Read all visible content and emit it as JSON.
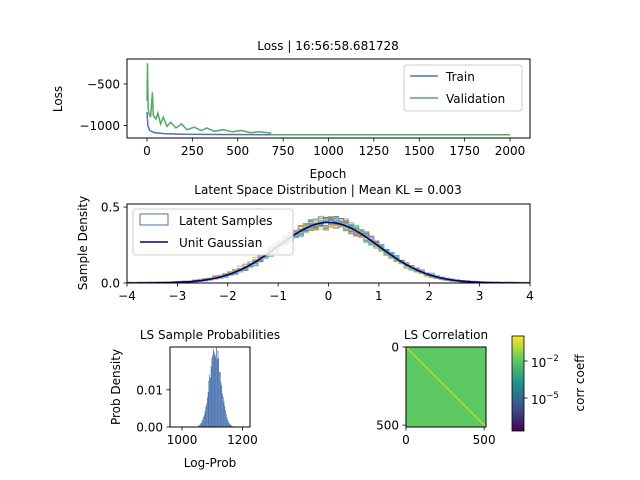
{
  "chart_data": [
    {
      "type": "line",
      "title": "Loss | 16:56:58.681728",
      "xlabel": "Epoch",
      "ylabel": "Loss",
      "xlim": [
        -110,
        2110
      ],
      "ylim": [
        -1150,
        -200
      ],
      "x_ticks": [
        0,
        250,
        500,
        750,
        1000,
        1250,
        1500,
        1750,
        2000
      ],
      "y_ticks": [
        -500,
        -1000
      ],
      "legend_position": "top-right",
      "series": [
        {
          "name": "Train",
          "color": "#4c72b0",
          "points": [
            [
              0,
              -840
            ],
            [
              5,
              -1000
            ],
            [
              15,
              -1060
            ],
            [
              40,
              -1085
            ],
            [
              100,
              -1098
            ],
            [
              200,
              -1105
            ],
            [
              400,
              -1108
            ],
            [
              700,
              -1110
            ],
            [
              1000,
              -1111
            ],
            [
              1500,
              -1112
            ],
            [
              2000,
              -1112
            ]
          ]
        },
        {
          "name": "Validation",
          "color": "#55a868",
          "points": [
            [
              0,
              -700
            ],
            [
              3,
              -250
            ],
            [
              6,
              -780
            ],
            [
              10,
              -850
            ],
            [
              20,
              -900
            ],
            [
              30,
              -600
            ],
            [
              35,
              -880
            ],
            [
              50,
              -920
            ],
            [
              60,
              -850
            ],
            [
              75,
              -980
            ],
            [
              90,
              -900
            ],
            [
              110,
              -1010
            ],
            [
              130,
              -960
            ],
            [
              160,
              -1030
            ],
            [
              190,
              -980
            ],
            [
              220,
              -1050
            ],
            [
              260,
              -1020
            ],
            [
              300,
              -1060
            ],
            [
              330,
              -1030
            ],
            [
              370,
              -1070
            ],
            [
              420,
              -1050
            ],
            [
              470,
              -1075
            ],
            [
              520,
              -1060
            ],
            [
              570,
              -1085
            ],
            [
              620,
              -1075
            ],
            [
              680,
              -1090
            ],
            [
              681,
              -1112
            ],
            [
              800,
              -1112
            ],
            [
              1000,
              -1112
            ],
            [
              1500,
              -1112
            ],
            [
              2000,
              -1112
            ]
          ]
        }
      ]
    },
    {
      "type": "area",
      "title": "Latent Space Distribution | Mean KL = 0.003",
      "xlabel": "",
      "ylabel": "Sample Density",
      "xlim": [
        -4,
        4
      ],
      "ylim": [
        0,
        0.52
      ],
      "x_ticks": [
        -4,
        -3,
        -2,
        -1,
        0,
        1,
        2,
        3,
        4
      ],
      "y_ticks": [
        0.0,
        0.5
      ],
      "legend_position": "top-left",
      "series": [
        {
          "name": "Latent Samples",
          "color": "#4c72b0",
          "style": "step histograms (many latent dimensions)"
        },
        {
          "name": "Unit Gaussian",
          "color": "#000080",
          "style": "line, N(0,1) pdf"
        }
      ]
    },
    {
      "type": "bar",
      "title": "LS Sample Probabilities",
      "xlabel": "Log-Prob",
      "ylabel": "Prob Density",
      "xlim": [
        960,
        1225
      ],
      "ylim": [
        0,
        0.0215
      ],
      "x_ticks": [
        1000,
        1200
      ],
      "y_ticks": [
        0.0,
        0.01
      ],
      "color": "#4c72b0",
      "distribution": {
        "mean": 1110,
        "std": 19
      }
    },
    {
      "type": "heatmap",
      "title": "LS Correlation",
      "xlim": [
        0,
        512
      ],
      "ylim": [
        512,
        0
      ],
      "x_ticks": [
        0,
        500
      ],
      "y_ticks": [
        0,
        500
      ],
      "off_diagonal_color": "#5ec962",
      "diagonal_color": "#d2e21b",
      "colorbar": {
        "label": "corr coeff",
        "scale": "log",
        "tick_labels": [
          "10",
          "10"
        ],
        "tick_exponents": [
          "−2",
          "−5"
        ]
      }
    }
  ]
}
